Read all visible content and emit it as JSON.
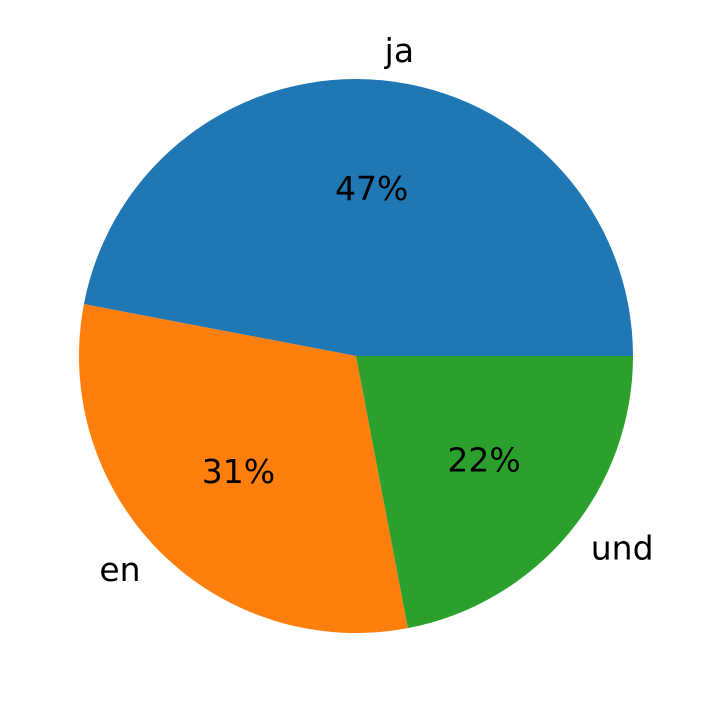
{
  "chart_data": {
    "type": "pie",
    "categories": [
      "ja",
      "en",
      "und"
    ],
    "values": [
      47,
      31,
      22
    ],
    "data_labels": [
      "47%",
      "31%",
      "22%"
    ],
    "colors": [
      "#1f77b4",
      "#ff7f0e",
      "#2ca02c"
    ],
    "start_angle_deg": 0,
    "direction": "counterclockwise",
    "legend": "none"
  }
}
